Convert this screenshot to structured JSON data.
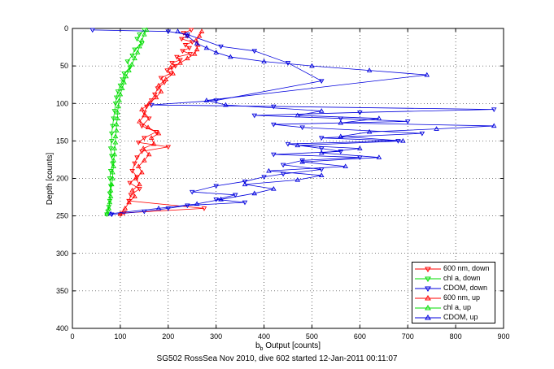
{
  "footer_text": "SG502 RossSea Nov 2010, dive 602 started 12-Jan-2011 00:11:07",
  "chart_data": {
    "type": "scatter",
    "xlabel_main": "b",
    "xlabel_sub": "b",
    "xlabel_rest": " Output [counts]",
    "ylabel": "Depth [counts]",
    "xlim": [
      0,
      900
    ],
    "ylim": [
      0,
      400
    ],
    "y_reversed": true,
    "grid": true,
    "x_ticks": [
      "0",
      "100",
      "200",
      "300",
      "400",
      "500",
      "600",
      "700",
      "800",
      "900"
    ],
    "y_ticks": [
      "0",
      "50",
      "100",
      "150",
      "200",
      "250",
      "300",
      "350",
      "400"
    ],
    "legend_position": "bottom-right",
    "series": [
      {
        "name": "600 nm, down",
        "color": "#ff0000",
        "marker": "triangle-down",
        "points": [
          [
            248,
            2
          ],
          [
            232,
            6
          ],
          [
            240,
            10
          ],
          [
            228,
            14
          ],
          [
            250,
            18
          ],
          [
            236,
            22
          ],
          [
            244,
            26
          ],
          [
            230,
            30
          ],
          [
            246,
            34
          ],
          [
            218,
            38
          ],
          [
            225,
            42
          ],
          [
            208,
            46
          ],
          [
            215,
            50
          ],
          [
            198,
            56
          ],
          [
            205,
            60
          ],
          [
            185,
            66
          ],
          [
            192,
            72
          ],
          [
            178,
            80
          ],
          [
            172,
            88
          ],
          [
            165,
            96
          ],
          [
            155,
            104
          ],
          [
            150,
            112
          ],
          [
            160,
            120
          ],
          [
            145,
            130
          ],
          [
            175,
            138
          ],
          [
            150,
            146
          ],
          [
            138,
            152
          ],
          [
            200,
            158
          ],
          [
            145,
            164
          ],
          [
            135,
            172
          ],
          [
            130,
            180
          ],
          [
            125,
            190
          ],
          [
            135,
            198
          ],
          [
            120,
            206
          ],
          [
            140,
            214
          ],
          [
            122,
            222
          ],
          [
            118,
            230
          ],
          [
            275,
            240
          ],
          [
            108,
            246
          ],
          [
            100,
            248
          ]
        ]
      },
      {
        "name": "chl a, down",
        "color": "#00dd00",
        "marker": "triangle-down",
        "points": [
          [
            150,
            2
          ],
          [
            140,
            8
          ],
          [
            135,
            14
          ],
          [
            145,
            20
          ],
          [
            130,
            28
          ],
          [
            125,
            36
          ],
          [
            115,
            44
          ],
          [
            120,
            52
          ],
          [
            108,
            60
          ],
          [
            105,
            68
          ],
          [
            100,
            76
          ],
          [
            95,
            84
          ],
          [
            92,
            92
          ],
          [
            90,
            100
          ],
          [
            88,
            110
          ],
          [
            86,
            120
          ],
          [
            84,
            130
          ],
          [
            82,
            140
          ],
          [
            82,
            150
          ],
          [
            80,
            160
          ],
          [
            82,
            170
          ],
          [
            84,
            180
          ],
          [
            80,
            190
          ],
          [
            78,
            200
          ],
          [
            80,
            210
          ],
          [
            78,
            220
          ],
          [
            78,
            230
          ],
          [
            76,
            238
          ],
          [
            74,
            244
          ],
          [
            72,
            248
          ]
        ]
      },
      {
        "name": "CDOM, down",
        "color": "#0000dd",
        "marker": "triangle-down",
        "points": [
          [
            42,
            2
          ],
          [
            200,
            4
          ],
          [
            240,
            8
          ],
          [
            310,
            24
          ],
          [
            380,
            30
          ],
          [
            450,
            46
          ],
          [
            520,
            70
          ],
          [
            300,
            96
          ],
          [
            165,
            102
          ],
          [
            420,
            104
          ],
          [
            880,
            108
          ],
          [
            600,
            112
          ],
          [
            380,
            116
          ],
          [
            560,
            120
          ],
          [
            700,
            124
          ],
          [
            420,
            128
          ],
          [
            480,
            132
          ],
          [
            730,
            140
          ],
          [
            520,
            146
          ],
          [
            680,
            150
          ],
          [
            450,
            154
          ],
          [
            520,
            160
          ],
          [
            560,
            164
          ],
          [
            420,
            168
          ],
          [
            600,
            172
          ],
          [
            480,
            176
          ],
          [
            440,
            182
          ],
          [
            520,
            188
          ],
          [
            440,
            194
          ],
          [
            400,
            198
          ],
          [
            360,
            204
          ],
          [
            300,
            210
          ],
          [
            250,
            218
          ],
          [
            340,
            222
          ],
          [
            300,
            228
          ],
          [
            360,
            232
          ],
          [
            240,
            236
          ],
          [
            200,
            240
          ],
          [
            150,
            244
          ],
          [
            82,
            248
          ]
        ]
      },
      {
        "name": "600 nm, up",
        "color": "#ff0000",
        "marker": "triangle-up",
        "points": [
          [
            100,
            247
          ],
          [
            110,
            240
          ],
          [
            118,
            232
          ],
          [
            130,
            224
          ],
          [
            125,
            216
          ],
          [
            140,
            208
          ],
          [
            132,
            200
          ],
          [
            145,
            192
          ],
          [
            138,
            184
          ],
          [
            150,
            176
          ],
          [
            160,
            168
          ],
          [
            148,
            160
          ],
          [
            170,
            154
          ],
          [
            165,
            146
          ],
          [
            180,
            140
          ],
          [
            158,
            132
          ],
          [
            140,
            124
          ],
          [
            150,
            116
          ],
          [
            145,
            108
          ],
          [
            160,
            100
          ],
          [
            175,
            92
          ],
          [
            185,
            84
          ],
          [
            180,
            76
          ],
          [
            195,
            68
          ],
          [
            210,
            60
          ],
          [
            205,
            52
          ],
          [
            225,
            46
          ],
          [
            240,
            40
          ],
          [
            255,
            34
          ],
          [
            260,
            28
          ],
          [
            262,
            22
          ],
          [
            258,
            16
          ],
          [
            265,
            10
          ],
          [
            270,
            4
          ]
        ]
      },
      {
        "name": "chl a, up",
        "color": "#00dd00",
        "marker": "triangle-up",
        "points": [
          [
            72,
            247
          ],
          [
            76,
            240
          ],
          [
            78,
            232
          ],
          [
            80,
            224
          ],
          [
            80,
            216
          ],
          [
            82,
            208
          ],
          [
            84,
            200
          ],
          [
            84,
            192
          ],
          [
            86,
            184
          ],
          [
            86,
            176
          ],
          [
            88,
            168
          ],
          [
            88,
            160
          ],
          [
            90,
            152
          ],
          [
            90,
            144
          ],
          [
            92,
            136
          ],
          [
            92,
            128
          ],
          [
            94,
            120
          ],
          [
            94,
            112
          ],
          [
            96,
            104
          ],
          [
            98,
            96
          ],
          [
            100,
            88
          ],
          [
            104,
            80
          ],
          [
            108,
            72
          ],
          [
            112,
            64
          ],
          [
            118,
            56
          ],
          [
            124,
            48
          ],
          [
            130,
            40
          ],
          [
            136,
            32
          ],
          [
            140,
            24
          ],
          [
            145,
            16
          ],
          [
            150,
            8
          ],
          [
            155,
            2
          ]
        ]
      },
      {
        "name": "CDOM, up",
        "color": "#0000dd",
        "marker": "triangle-up",
        "points": [
          [
            80,
            247
          ],
          [
            180,
            240
          ],
          [
            260,
            234
          ],
          [
            310,
            228
          ],
          [
            380,
            220
          ],
          [
            420,
            214
          ],
          [
            360,
            208
          ],
          [
            470,
            202
          ],
          [
            520,
            196
          ],
          [
            410,
            190
          ],
          [
            570,
            184
          ],
          [
            480,
            178
          ],
          [
            640,
            172
          ],
          [
            520,
            166
          ],
          [
            600,
            160
          ],
          [
            470,
            156
          ],
          [
            690,
            150
          ],
          [
            560,
            144
          ],
          [
            620,
            138
          ],
          [
            760,
            134
          ],
          [
            880,
            130
          ],
          [
            560,
            126
          ],
          [
            640,
            120
          ],
          [
            470,
            116
          ],
          [
            520,
            110
          ],
          [
            320,
            102
          ],
          [
            280,
            96
          ],
          [
            740,
            62
          ],
          [
            620,
            56
          ],
          [
            500,
            50
          ],
          [
            400,
            44
          ],
          [
            330,
            38
          ],
          [
            300,
            32
          ],
          [
            280,
            26
          ],
          [
            260,
            20
          ],
          [
            240,
            10
          ],
          [
            220,
            4
          ]
        ]
      }
    ]
  }
}
